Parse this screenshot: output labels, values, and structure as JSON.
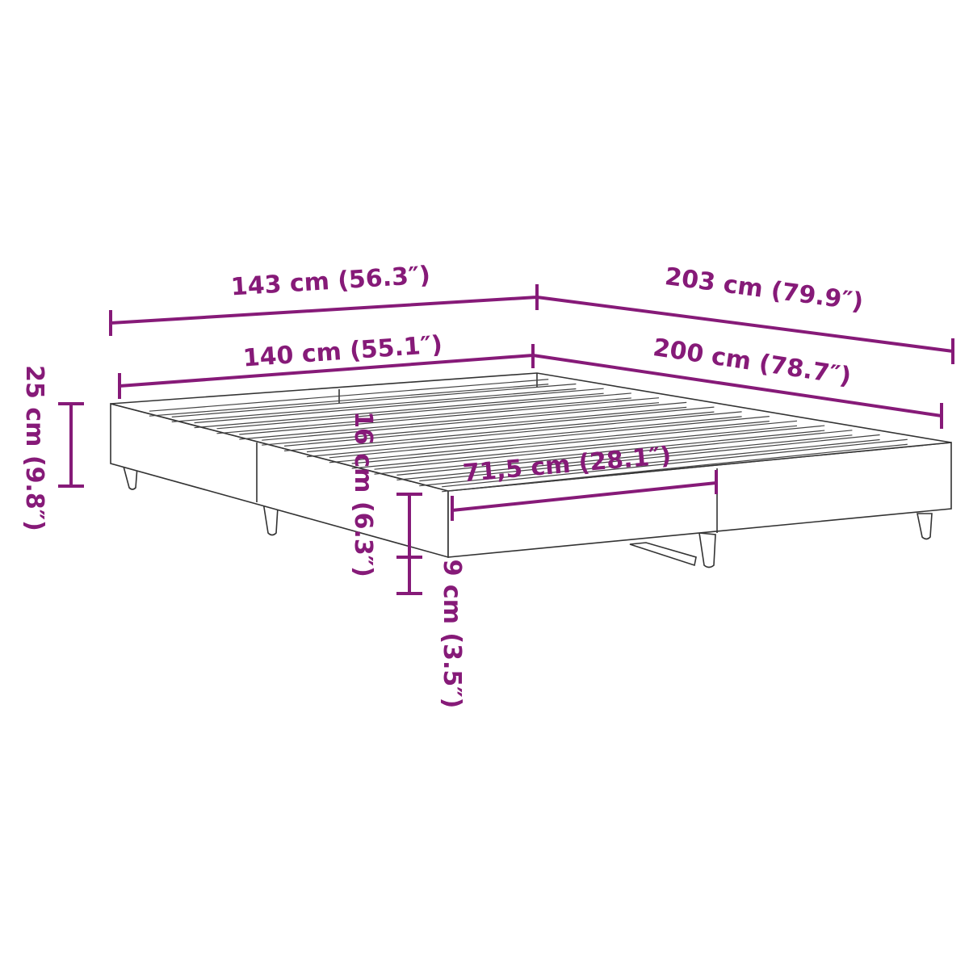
{
  "colors": {
    "dimension": "#861a78",
    "outline": "#333333",
    "background": "#ffffff"
  },
  "dimensions": {
    "outer_width": "143 cm (56.3″)",
    "outer_length": "203 cm (79.9″)",
    "inner_width": "140 cm (55.1″)",
    "inner_length": "200 cm (78.7″)",
    "total_height": "25 cm (9.8″)",
    "frame_height": "16 cm (6.3″)",
    "clearance": "9 cm (3.5″)",
    "half_width": "71,5 cm (28.1″)"
  }
}
